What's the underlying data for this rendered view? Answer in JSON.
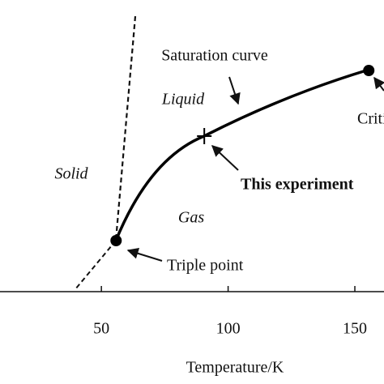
{
  "chart_data": {
    "type": "phase-diagram",
    "xlabel": "Temperature/K",
    "xlim": [
      10,
      161.5
    ],
    "xticks": [
      50,
      100,
      150
    ],
    "regions": [
      "Solid",
      "Liquid",
      "Gas"
    ],
    "curve_label": "Saturation curve",
    "points": [
      {
        "label": "Triple point",
        "x": 55.8,
        "marker": "dot"
      },
      {
        "label": "This experiment",
        "x": 90.6,
        "marker": "cross"
      },
      {
        "label": "Critical point",
        "x": 155.5,
        "marker": "dot"
      }
    ]
  }
}
